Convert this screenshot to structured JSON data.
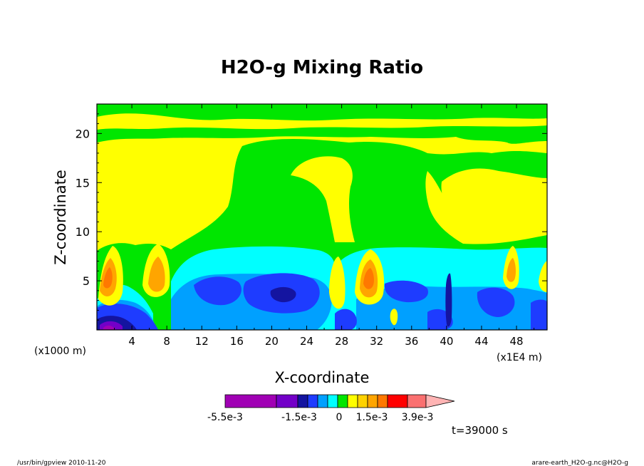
{
  "chart_data": {
    "type": "heatmap",
    "title": "H2O-g Mixing Ratio",
    "xlabel": "X-coordinate",
    "ylabel": "Z-coordinate",
    "x_unit_left": "(x1000 m)",
    "x_unit_right": "(x1E4 m)",
    "xlim": [
      0,
      51.5
    ],
    "ylim": [
      0,
      23
    ],
    "x_ticks": [
      4,
      8,
      12,
      16,
      20,
      24,
      28,
      32,
      36,
      40,
      44,
      48
    ],
    "x_tick_labels": [
      "4",
      "8",
      "12",
      "16",
      "20",
      "24",
      "28",
      "32",
      "36",
      "40",
      "44",
      "48"
    ],
    "y_ticks": [
      5,
      10,
      15,
      20
    ],
    "y_tick_labels": [
      "5",
      "10",
      "15",
      "20"
    ],
    "colorbar": {
      "colors": [
        "#a000b4",
        "#7300c8",
        "#1414a0",
        "#1e3cff",
        "#00a0ff",
        "#00ffff",
        "#00e600",
        "#ffff00",
        "#ffd200",
        "#ffa500",
        "#ff7800",
        "#ff0000",
        "#fa7070",
        "#ffb4b4"
      ],
      "labels": [
        "-5.5e-3",
        "-1.5e-3",
        "0",
        "1.5e-3",
        "3.9e-3"
      ]
    },
    "time_label": "t=39000 s"
  },
  "footer": {
    "left": "/usr/bin/gpview  2010-11-20",
    "right": "arare-earth_H2O-g.nc@H2O-g"
  }
}
